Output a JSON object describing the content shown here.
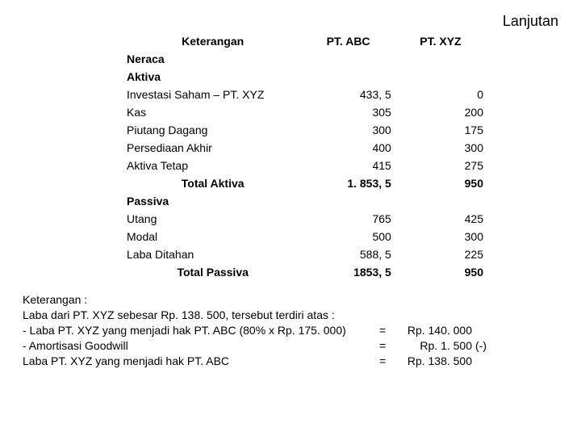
{
  "header": {
    "col1": "Keterangan",
    "col2": "PT. ABC",
    "col3": "PT. XYZ",
    "lanjutan": "Lanjutan"
  },
  "sections": {
    "neraca": "Neraca",
    "aktiva": "Aktiva",
    "passiva": "Passiva"
  },
  "aktiva_rows": [
    {
      "label": "Investasi Saham – PT. XYZ",
      "abc": "433, 5",
      "xyz": "0"
    },
    {
      "label": "Kas",
      "abc": "305",
      "xyz": "200"
    },
    {
      "label": "Piutang Dagang",
      "abc": "300",
      "xyz": "175"
    },
    {
      "label": "Persediaan Akhir",
      "abc": "400",
      "xyz": "300"
    },
    {
      "label": "Aktiva Tetap",
      "abc": "415",
      "xyz": "275"
    }
  ],
  "total_aktiva": {
    "label": "Total Aktiva",
    "abc": "1. 853, 5",
    "xyz": "950"
  },
  "passiva_rows": [
    {
      "label": "Utang",
      "abc": "765",
      "xyz": "425"
    },
    {
      "label": "Modal",
      "abc": "500",
      "xyz": "300"
    },
    {
      "label": "Laba Ditahan",
      "abc": "588, 5",
      "xyz": "225"
    }
  ],
  "total_passiva": {
    "label": "Total Passiva",
    "abc": "1853, 5",
    "xyz": "950"
  },
  "notes": {
    "line1": "Keterangan  :",
    "line2": "Laba dari PT. XYZ sebesar Rp. 138. 500, tersebut terdiri atas  :",
    "line3_left": "-  Laba PT. XYZ yang menjadi hak PT. ABC     (80% x Rp.  175. 000)",
    "line3_eq": "=",
    "line3_right": "Rp. 140. 000",
    "line4_left": "-  Amortisasi Goodwill",
    "line4_eq": "=",
    "line4_right": "Rp.     1. 500",
    "line4_suffix": "(-)",
    "line5_left": "Laba PT. XYZ yang menjadi hak PT. ABC",
    "line5_eq": "=",
    "line5_right": "Rp. 138. 500"
  }
}
